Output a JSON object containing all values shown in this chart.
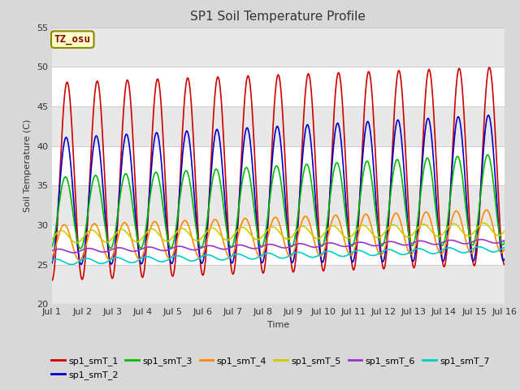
{
  "title": "SP1 Soil Temperature Profile",
  "xlabel": "Time",
  "ylabel": "Soil Temperature (C)",
  "ylim": [
    20,
    55
  ],
  "xlim": [
    0,
    15
  ],
  "xtick_labels": [
    "Jul 1",
    "Jul 2",
    "Jul 3",
    "Jul 4",
    "Jul 5",
    "Jul 6",
    "Jul 7",
    "Jul 8",
    "Jul 9",
    "Jul 10",
    "Jul 11",
    "Jul 12",
    "Jul 13",
    "Jul 14",
    "Jul 15",
    "Jul 16"
  ],
  "annotation": "TZ_osu",
  "series_colors": [
    "#cc0000",
    "#0000cc",
    "#00bb00",
    "#ff8800",
    "#cccc00",
    "#9933cc",
    "#00cccc"
  ],
  "series_labels": [
    "sp1_smT_1",
    "sp1_smT_2",
    "sp1_smT_3",
    "sp1_smT_4",
    "sp1_smT_5",
    "sp1_smT_6",
    "sp1_smT_7"
  ],
  "fig_bg_color": "#d8d8d8",
  "plot_bg_color": "#ffffff",
  "alt_band_color": "#e8e8e8",
  "title_fontsize": 11,
  "n_days": 15,
  "n_points_per_day": 144,
  "yticks": [
    20,
    25,
    30,
    35,
    40,
    45,
    50,
    55
  ]
}
